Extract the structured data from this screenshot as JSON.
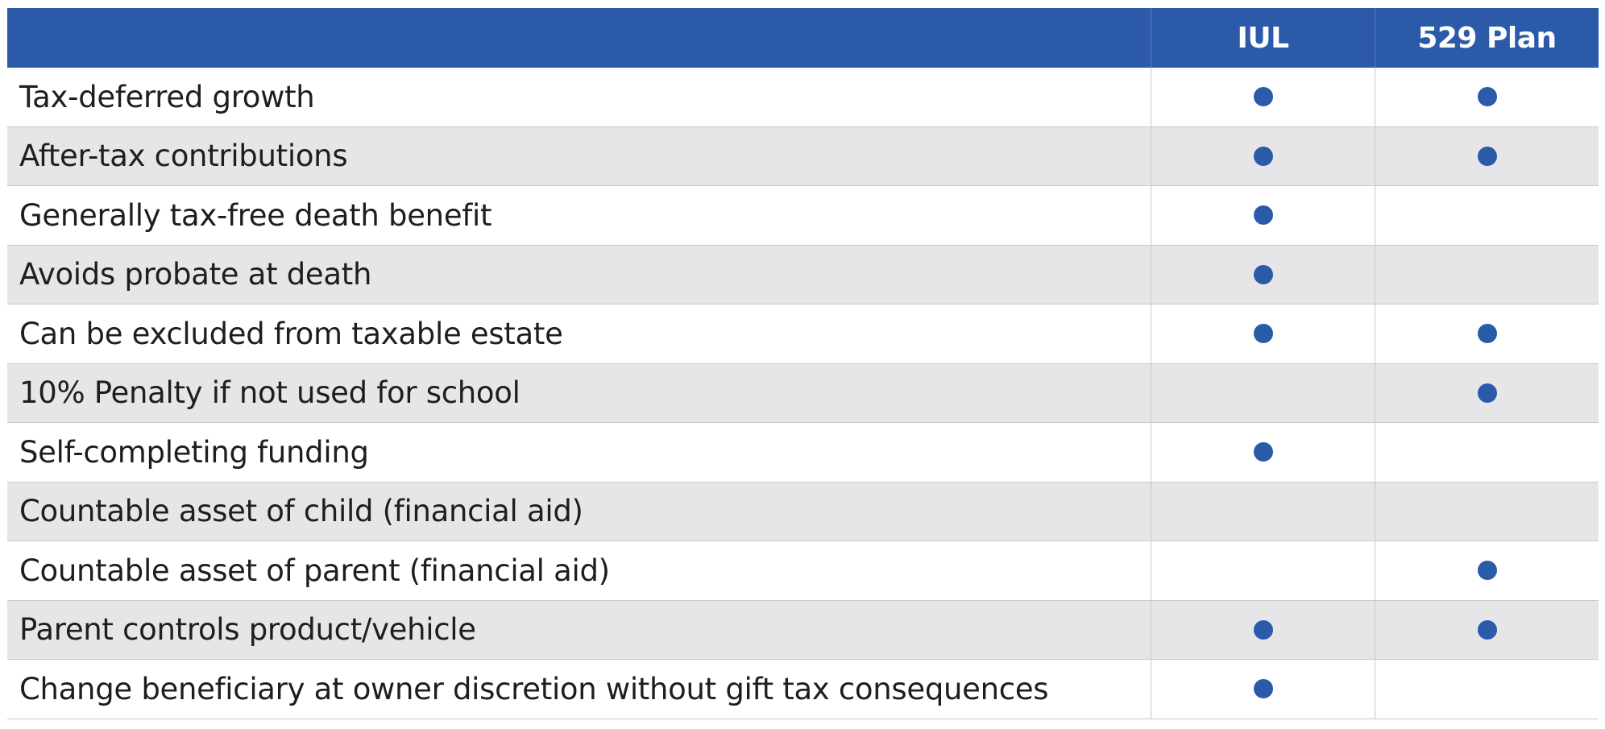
{
  "colors": {
    "header_bg": "#2b5aa9",
    "dot": "#2b5aa9",
    "stripe": "#e6e6e8"
  },
  "header": {
    "feature": "",
    "iul": "IUL",
    "plan529": "529 Plan"
  },
  "rows": [
    {
      "feature": "Tax-deferred growth",
      "iul": true,
      "plan529": true
    },
    {
      "feature": "After-tax contributions",
      "iul": true,
      "plan529": true
    },
    {
      "feature": "Generally tax-free death benefit",
      "iul": true,
      "plan529": false
    },
    {
      "feature": "Avoids probate at death",
      "iul": true,
      "plan529": false
    },
    {
      "feature": "Can be excluded from taxable estate",
      "iul": true,
      "plan529": true
    },
    {
      "feature": "10% Penalty if not used for school",
      "iul": false,
      "plan529": true
    },
    {
      "feature": "Self-completing funding",
      "iul": true,
      "plan529": false
    },
    {
      "feature": "Countable asset of child (financial aid)",
      "iul": false,
      "plan529": false
    },
    {
      "feature": "Countable asset of parent (financial aid)",
      "iul": false,
      "plan529": true
    },
    {
      "feature": "Parent controls product/vehicle",
      "iul": true,
      "plan529": true
    },
    {
      "feature": "Change beneficiary at owner discretion without gift tax consequences",
      "iul": true,
      "plan529": false
    }
  ]
}
